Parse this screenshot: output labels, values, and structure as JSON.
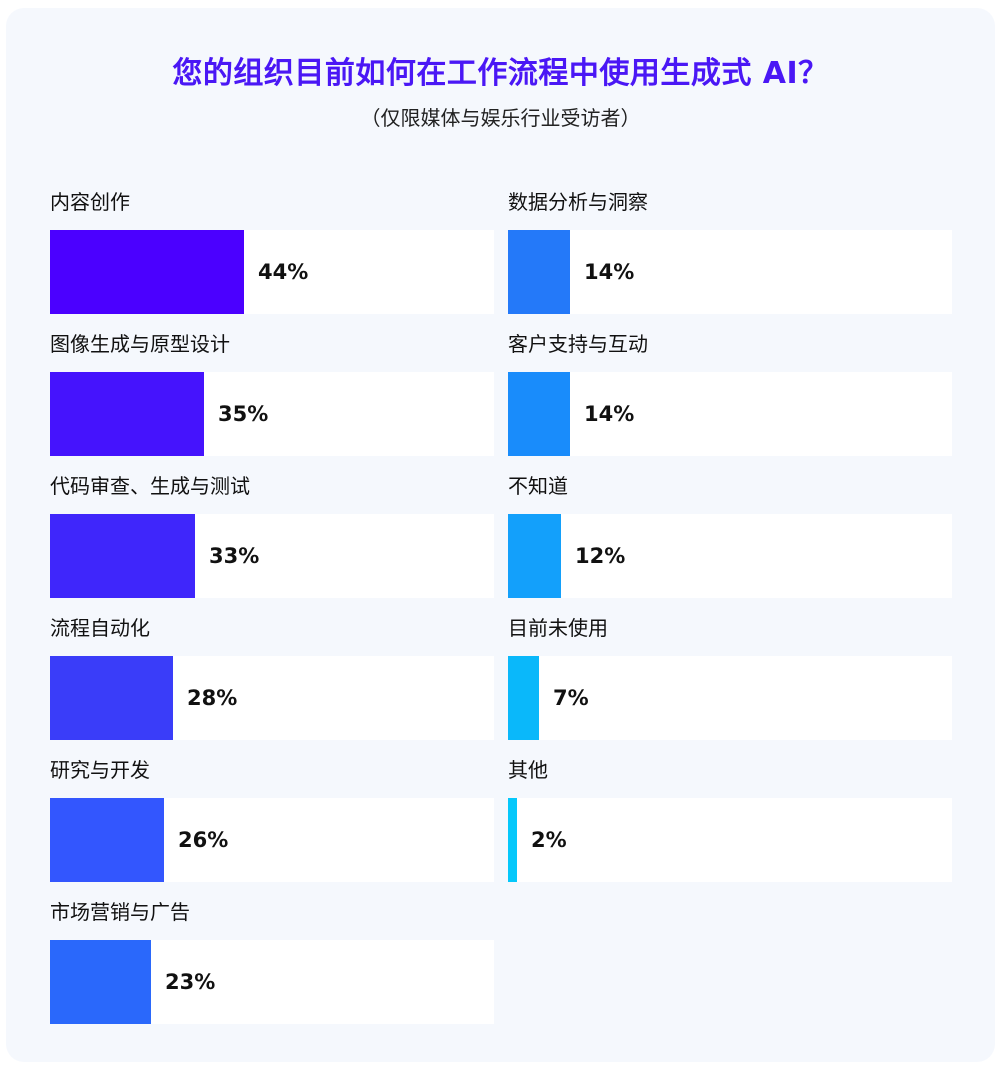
{
  "title": "您的组织目前如何在工作流程中使用生成式 AI？",
  "subtitle": "（仅限媒体与娱乐行业受访者）",
  "chart_data": {
    "type": "bar",
    "orientation": "horizontal",
    "unit": "%",
    "xlim": [
      0,
      100
    ],
    "title": "您的组织目前如何在工作流程中使用生成式 AI？",
    "subtitle": "（仅限媒体与娱乐行业受访者）",
    "categories": [
      "内容创作",
      "图像生成与原型设计",
      "代码审查、生成与测试",
      "流程自动化",
      "研究与开发",
      "市场营销与广告",
      "数据分析与洞察",
      "客户支持与互动",
      "不知道",
      "目前未使用",
      "其他"
    ],
    "values": [
      44,
      35,
      33,
      28,
      26,
      23,
      14,
      14,
      12,
      7,
      2
    ],
    "value_labels": [
      "44%",
      "35%",
      "33%",
      "28%",
      "26%",
      "23%",
      "14%",
      "14%",
      "12%",
      "7%",
      "2%"
    ],
    "colors": [
      "#4b00ff",
      "#4513fd",
      "#3f26fb",
      "#3a3df9",
      "#3356fe",
      "#2a68fb",
      "#2479f9",
      "#198cfb",
      "#13a0fb",
      "#0ab8fa",
      "#05c8fb"
    ],
    "grid": false,
    "legend": "none",
    "layout": "two-column"
  }
}
